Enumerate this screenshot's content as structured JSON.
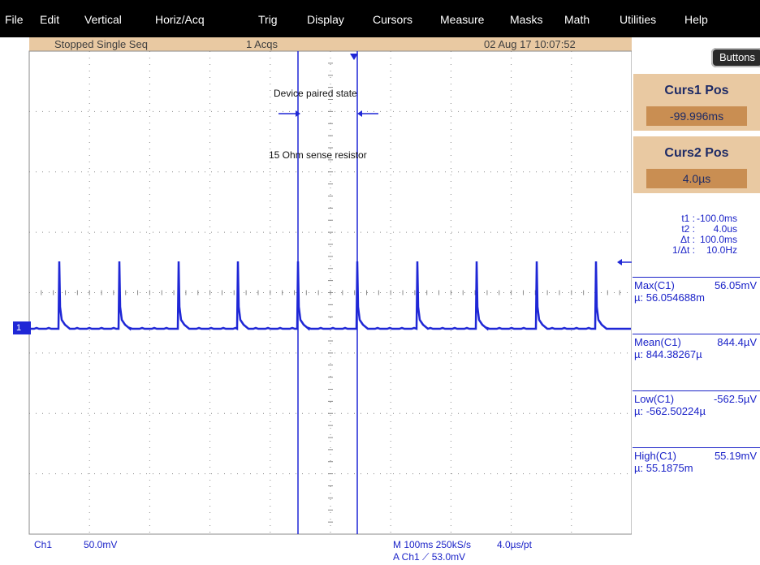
{
  "menu": {
    "file": "File",
    "edit": "Edit",
    "vertical": "Vertical",
    "horiz": "Horiz/Acq",
    "trig": "Trig",
    "display": "Display",
    "cursors": "Cursors",
    "measure": "Measure",
    "masks": "Masks",
    "math": "Math",
    "utilities": "Utilities",
    "help": "Help"
  },
  "status": {
    "state": "Stopped  Single Seq",
    "acqs": "1 Acqs",
    "datetime": "02 Aug 17 10:07:52"
  },
  "buttons_label": "Buttons",
  "curs1": {
    "title": "Curs1 Pos",
    "value": "-99.996ms"
  },
  "curs2": {
    "title": "Curs2 Pos",
    "value": "4.0µs"
  },
  "readout": [
    {
      "label": "t1 :",
      "value": "-100.0ms"
    },
    {
      "label": "t2 :",
      "value": "4.0us"
    },
    {
      "label": "Δt :",
      "value": "100.0ms"
    },
    {
      "label": "1/Δt :",
      "value": "10.0Hz"
    }
  ],
  "measurements": [
    {
      "name": "Max(C1)",
      "value": "56.05mV",
      "mean": "µ: 56.054688m"
    },
    {
      "name": "Mean(C1)",
      "value": "844.4µV",
      "mean": "µ: 844.38267µ"
    },
    {
      "name": "Low(C1)",
      "value": "-562.5µV",
      "mean": "µ: -562.50224µ"
    },
    {
      "name": "High(C1)",
      "value": "55.19mV",
      "mean": "µ: 55.1875m"
    }
  ],
  "annotations": {
    "paired": "Device paired state",
    "resistor": "15 Ohm sense resistor"
  },
  "ch1_marker": "1",
  "bottom": {
    "ch": "Ch1",
    "scale": "50.0mV",
    "timebase": "M 100ms 250kS/s",
    "pt": "4.0µs/pt",
    "trigger": "A  Ch1  ⟋  53.0mV"
  },
  "colors": {
    "trace": "#1f27d6",
    "grid": "#8a8a8a",
    "panel": "#e9c9a2",
    "value_box": "#c98e52"
  }
}
